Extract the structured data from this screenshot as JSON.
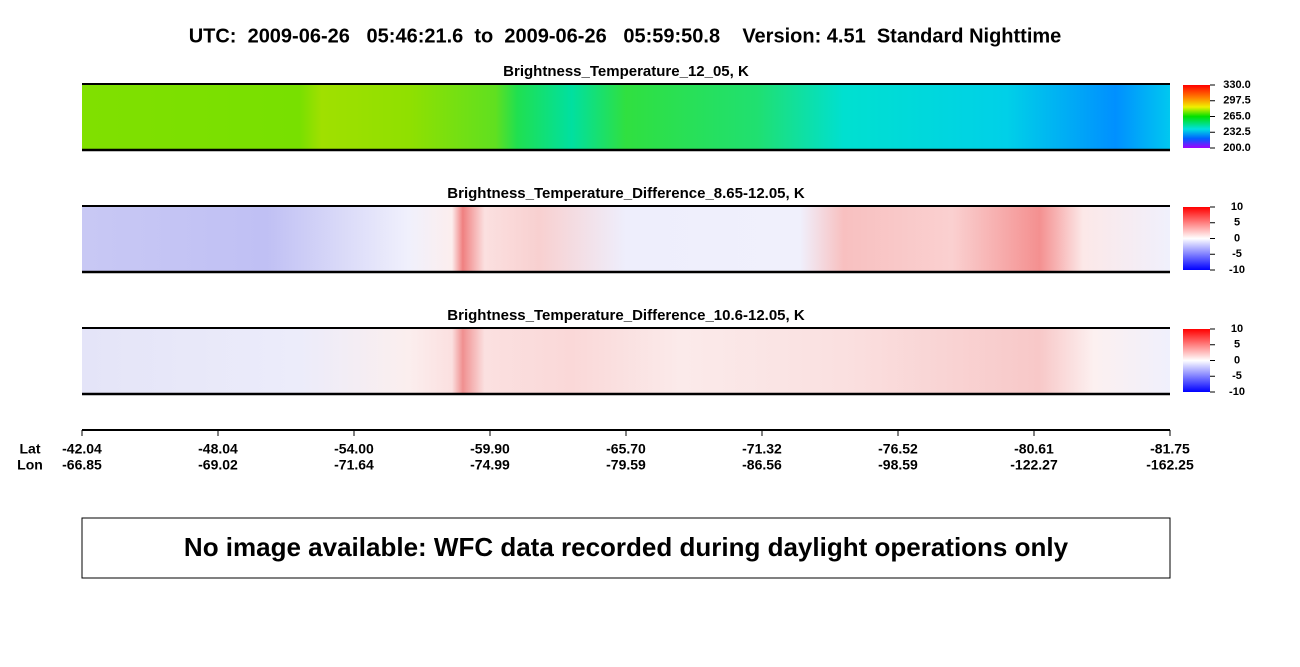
{
  "header": {
    "title": "UTC:  2009-06-26   05:46:21.6  to  2009-06-26   05:59:50.8    Version: 4.51  Standard Nighttime"
  },
  "panels": [
    {
      "title": "Brightness_Temperature_12_05, K",
      "colorbar_ticks": [
        {
          "value": 330,
          "label": "330.0"
        },
        {
          "value": 297.5,
          "label": "297.5"
        },
        {
          "value": 265,
          "label": "265.0"
        },
        {
          "value": 232.5,
          "label": "232.5"
        },
        {
          "value": 200,
          "label": "200.0"
        }
      ]
    },
    {
      "title": "Brightness_Temperature_Difference_8.65-12.05, K",
      "colorbar_ticks": [
        10,
        5,
        0,
        -5,
        -10
      ]
    },
    {
      "title": "Brightness_Temperature_Difference_10.6-12.05, K",
      "colorbar_ticks": [
        10,
        5,
        0,
        -5,
        -10
      ]
    }
  ],
  "axis": {
    "lat_label": "Lat",
    "lon_label": "Lon",
    "lat": [
      "-42.04",
      "-48.04",
      "-54.00",
      "-59.90",
      "-65.70",
      "-71.32",
      "-76.52",
      "-80.61",
      "-81.75"
    ],
    "lon": [
      "-66.85",
      "-69.02",
      "-71.64",
      "-74.99",
      "-79.59",
      "-86.56",
      "-98.59",
      "-122.27",
      "-162.25"
    ]
  },
  "notice": {
    "text": "No image available: WFC data recorded during daylight operations only"
  }
}
